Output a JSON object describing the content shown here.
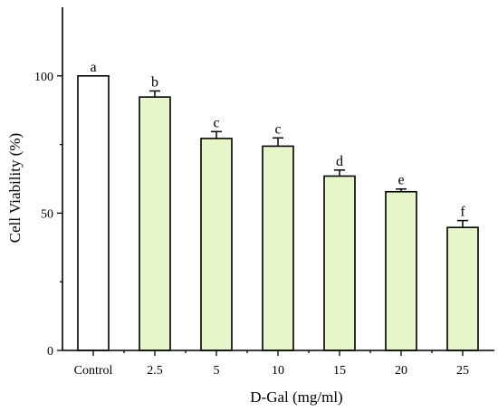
{
  "chart_data": {
    "type": "bar",
    "categories": [
      "Control",
      "2.5",
      "5",
      "10",
      "15",
      "20",
      "25"
    ],
    "values": [
      100,
      92.3,
      77.2,
      74.4,
      63.5,
      57.8,
      44.8
    ],
    "errors": [
      0,
      2.2,
      2.5,
      3.0,
      2.2,
      1.0,
      2.5
    ],
    "significance": [
      "a",
      "b",
      "c",
      "c",
      "d",
      "e",
      "f"
    ],
    "xlabel": "D-Gal (mg/ml)",
    "ylabel": "Cell Viability (%)",
    "ylim": [
      0,
      125
    ],
    "yticks": [
      0,
      50,
      100
    ],
    "colors": {
      "control_fill": "#ffffff",
      "treatment_fill": "#e6f6c8",
      "edge": "#000000"
    },
    "grid": false,
    "legend": "none"
  }
}
